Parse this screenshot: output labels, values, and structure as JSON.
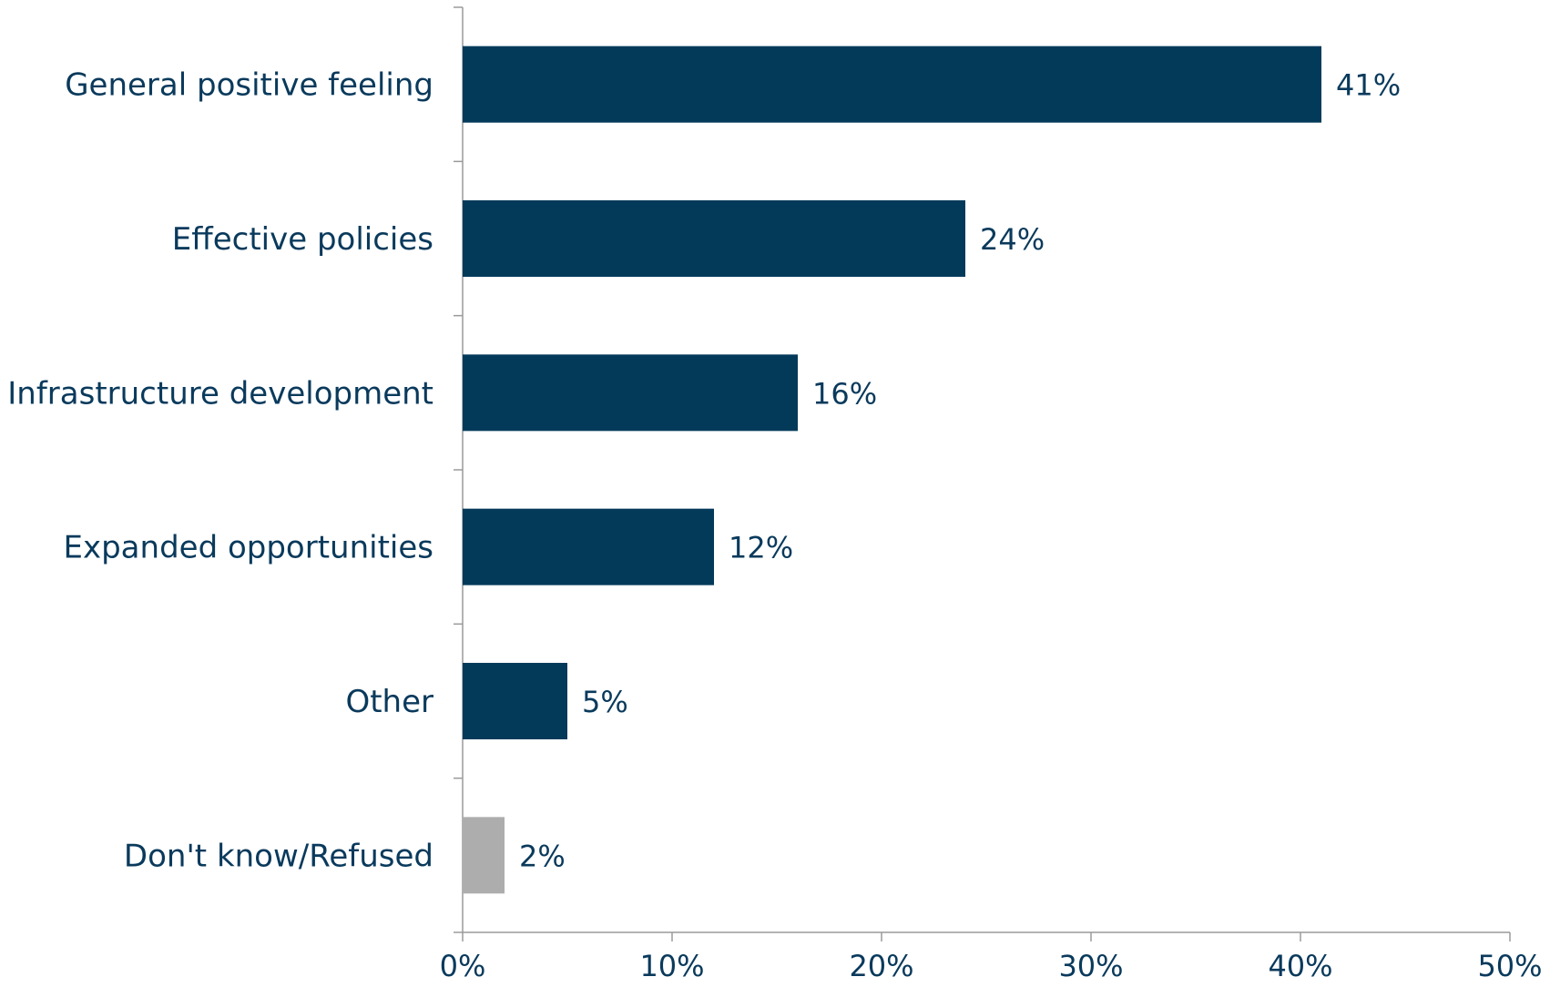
{
  "chart_data": {
    "type": "bar",
    "orientation": "horizontal",
    "categories": [
      "General positive feeling",
      "Effective policies",
      "Infrastructure development",
      "Expanded opportunities",
      "Other",
      "Don't know/Refused"
    ],
    "values": [
      41,
      24,
      16,
      12,
      5,
      2
    ],
    "value_labels": [
      "41%",
      "24%",
      "16%",
      "12%",
      "5%",
      "2%"
    ],
    "bar_colors": [
      "#033a5a",
      "#033a5a",
      "#033a5a",
      "#033a5a",
      "#033a5a",
      "#adadad"
    ],
    "x_ticks": [
      "0%",
      "10%",
      "20%",
      "30%",
      "40%",
      "50%"
    ],
    "xlim": [
      0,
      50
    ],
    "title": "",
    "xlabel": "",
    "ylabel": "",
    "grid": false,
    "legend": false
  },
  "colors": {
    "text": "#0a3a5c",
    "axis": "#9a9a9a",
    "bar_primary": "#033a5a",
    "bar_neutral": "#adadad"
  }
}
